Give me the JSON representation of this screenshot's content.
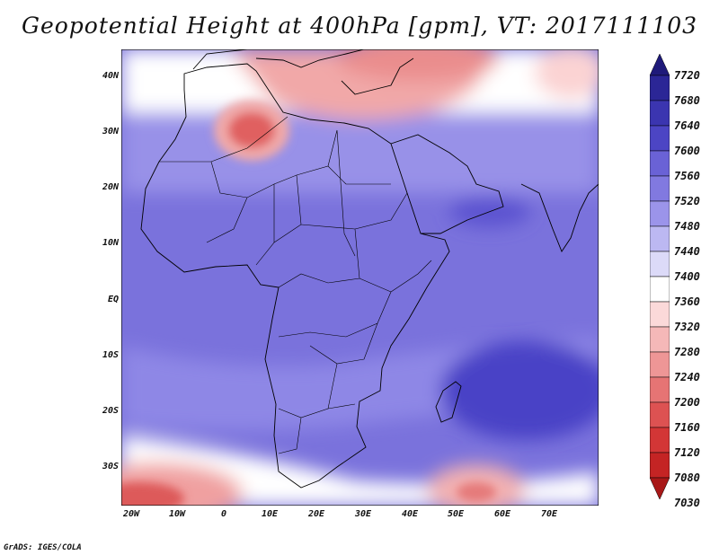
{
  "title": "Geopotential Height at 400hPa [gpm], VT: 2017111103",
  "credit": "GrADS: IGES/COLA",
  "map": {
    "lat_labels": [
      "40N",
      "30N",
      "20N",
      "10N",
      "EQ",
      "10S",
      "20S",
      "30S"
    ],
    "lon_labels": [
      "20W",
      "10W",
      "0",
      "10E",
      "20E",
      "30E",
      "40E",
      "50E",
      "60E",
      "70E"
    ],
    "lat_range": [
      -37,
      45
    ],
    "lon_range": [
      -23,
      80
    ]
  },
  "colorbar": {
    "labels": [
      "7720",
      "7680",
      "7640",
      "7600",
      "7560",
      "7520",
      "7480",
      "7440",
      "7400",
      "7360",
      "7320",
      "7280",
      "7240",
      "7200",
      "7160",
      "7120",
      "7080",
      "7030"
    ],
    "colors": [
      "#1f1a7a",
      "#2b2696",
      "#3b35b0",
      "#4c45c4",
      "#6a62d6",
      "#8179e0",
      "#9b94ea",
      "#bcb8f2",
      "#dcdaf8",
      "#ffffff",
      "#fbd9d9",
      "#f5b8b8",
      "#ee9696",
      "#e67474",
      "#dd5252",
      "#d33636",
      "#c42424",
      "#a81818"
    ]
  }
}
